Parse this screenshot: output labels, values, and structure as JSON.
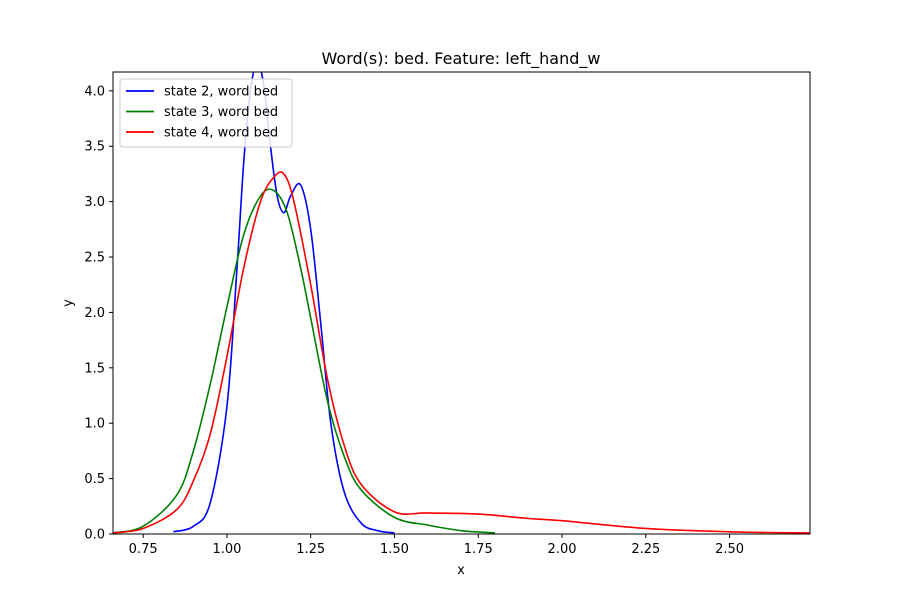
{
  "chart_data": {
    "type": "line",
    "title": "Word(s): bed. Feature: left_hand_w",
    "xlabel": "x",
    "ylabel": "y",
    "xlim": [
      0.66,
      2.74
    ],
    "ylim": [
      0.0,
      4.17
    ],
    "xticks": [
      "0.75",
      "1.00",
      "1.25",
      "1.50",
      "1.75",
      "2.00",
      "2.25",
      "2.50"
    ],
    "yticks": [
      "0.0",
      "0.5",
      "1.0",
      "1.5",
      "2.0",
      "2.5",
      "3.0",
      "3.5",
      "4.0"
    ],
    "grid": false,
    "legend_position": "upper-left",
    "series": [
      {
        "name": "state 2, word bed",
        "color": "#0000ff",
        "x": [
          0.84,
          0.9,
          0.95,
          1.0,
          1.03,
          1.05,
          1.07,
          1.09,
          1.11,
          1.13,
          1.15,
          1.17,
          1.19,
          1.22,
          1.25,
          1.28,
          1.31,
          1.35,
          1.4,
          1.45,
          1.5
        ],
        "y": [
          0.02,
          0.07,
          0.28,
          1.15,
          2.4,
          3.35,
          4.0,
          4.25,
          4.05,
          3.5,
          3.05,
          2.9,
          3.05,
          3.15,
          2.75,
          1.9,
          1.0,
          0.38,
          0.1,
          0.03,
          0.01
        ]
      },
      {
        "name": "state 3, word bed",
        "color": "#008000",
        "x": [
          0.66,
          0.75,
          0.85,
          0.9,
          0.95,
          1.0,
          1.05,
          1.1,
          1.14,
          1.18,
          1.22,
          1.25,
          1.3,
          1.35,
          1.4,
          1.5,
          1.6,
          1.7,
          1.8
        ],
        "y": [
          0.01,
          0.07,
          0.35,
          0.75,
          1.35,
          2.05,
          2.7,
          3.05,
          3.1,
          2.9,
          2.4,
          1.95,
          1.2,
          0.7,
          0.4,
          0.15,
          0.08,
          0.03,
          0.01
        ]
      },
      {
        "name": "state 4, word bed",
        "color": "#ff0000",
        "x": [
          0.66,
          0.75,
          0.85,
          0.9,
          0.95,
          1.0,
          1.05,
          1.1,
          1.14,
          1.17,
          1.2,
          1.25,
          1.3,
          1.35,
          1.4,
          1.5,
          1.6,
          1.75,
          1.9,
          2.0,
          2.25,
          2.5,
          2.74
        ],
        "y": [
          0.01,
          0.05,
          0.22,
          0.48,
          0.9,
          1.6,
          2.4,
          3.0,
          3.22,
          3.25,
          3.0,
          2.25,
          1.4,
          0.8,
          0.45,
          0.2,
          0.19,
          0.18,
          0.14,
          0.12,
          0.05,
          0.02,
          0.01
        ]
      }
    ]
  }
}
